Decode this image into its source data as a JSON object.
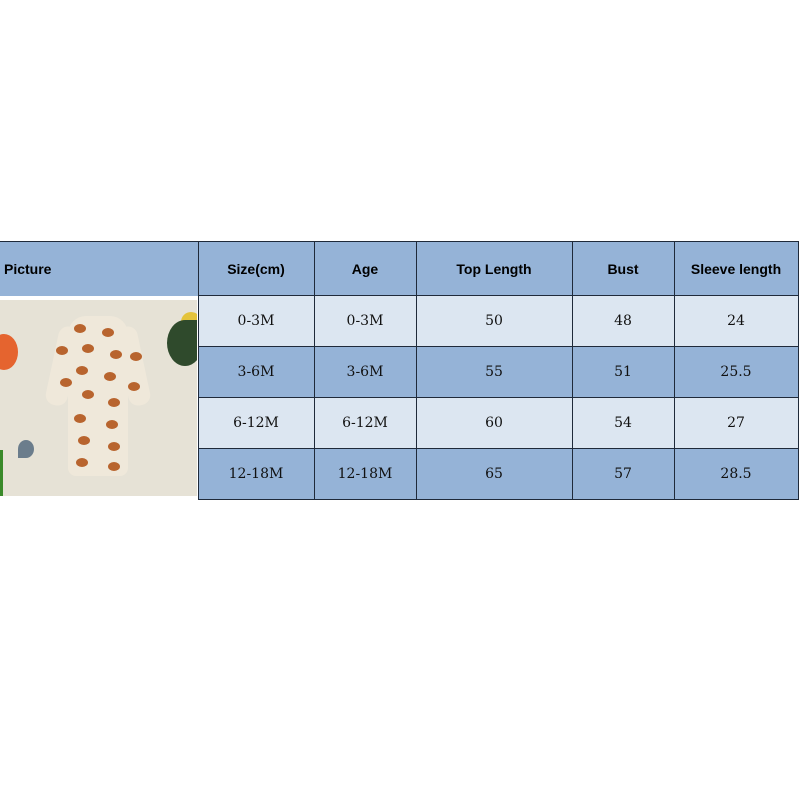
{
  "table": {
    "headers": [
      "Picture",
      "Size(cm)",
      "Age",
      "Top Length",
      "Bust",
      "Sleeve length"
    ],
    "rows": [
      [
        "0-3M",
        "0-3M",
        "50",
        "48",
        "24"
      ],
      [
        "3-6M",
        "3-6M",
        "55",
        "51",
        "25.5"
      ],
      [
        "6-12M",
        "6-12M",
        "60",
        "54",
        "27"
      ],
      [
        "12-18M",
        "12-18M",
        "65",
        "57",
        "28.5"
      ]
    ]
  },
  "colors": {
    "header": "#95b3d7",
    "row_light": "#dce6f1",
    "row_dark": "#95b3d7"
  },
  "picture": {
    "icon": "football-print-romper-photo"
  }
}
